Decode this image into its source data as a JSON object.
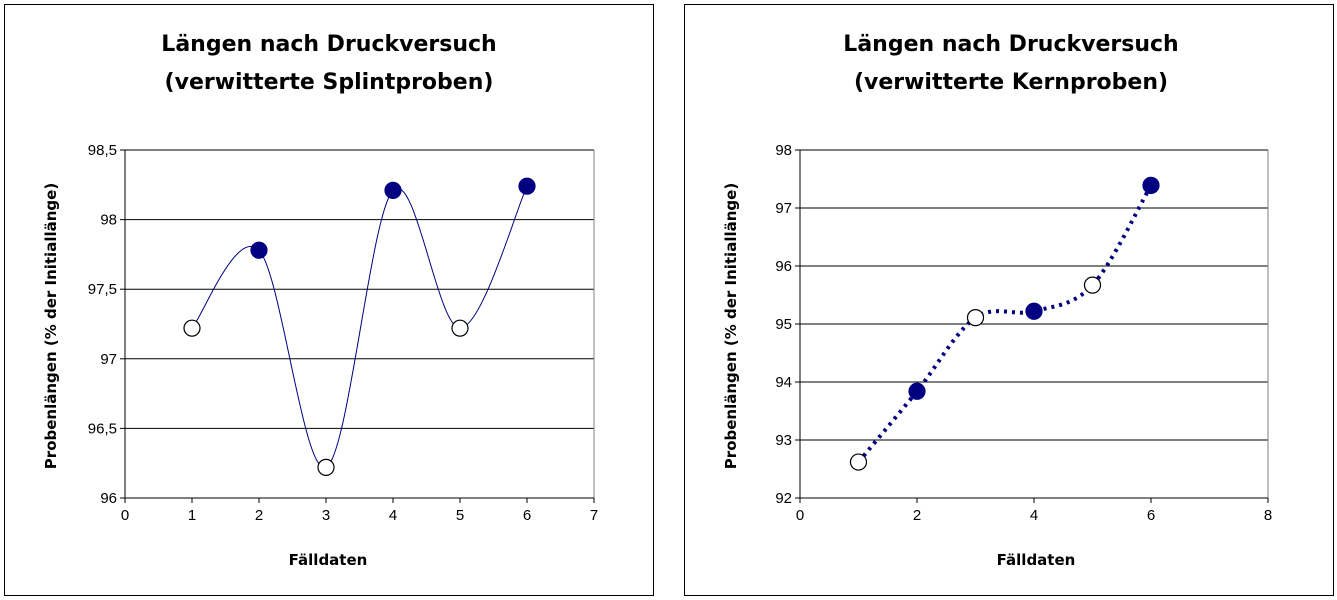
{
  "chart_data": [
    {
      "type": "scatter",
      "title": [
        "Längen nach Druckversuch",
        "(verwitterte Splintproben)"
      ],
      "xlabel": "Fälldaten",
      "ylabel": "Probenlängen (% der Initiallänge)",
      "xlim": [
        0,
        7
      ],
      "ylim": [
        96,
        98.5
      ],
      "x_ticks": [
        "0",
        "1",
        "2",
        "3",
        "4",
        "5",
        "6",
        "7"
      ],
      "y_ticks": [
        "96",
        "96,5",
        "97",
        "97,5",
        "98",
        "98,5"
      ],
      "grid": true,
      "line_style": "smooth-solid",
      "line_color": "#000080",
      "points": [
        {
          "x": 1,
          "y": 97.22,
          "filled": false
        },
        {
          "x": 2,
          "y": 97.78,
          "filled": true
        },
        {
          "x": 3,
          "y": 96.22,
          "filled": false
        },
        {
          "x": 4,
          "y": 98.21,
          "filled": true
        },
        {
          "x": 5,
          "y": 97.22,
          "filled": false
        },
        {
          "x": 6,
          "y": 98.24,
          "filled": true
        }
      ]
    },
    {
      "type": "scatter",
      "title": [
        "Längen nach Druckversuch",
        "(verwitterte Kernproben)"
      ],
      "xlabel": "Fälldaten",
      "ylabel": "Probenlängen (% der Initiallänge)",
      "xlim": [
        0,
        8
      ],
      "ylim": [
        92,
        98
      ],
      "x_ticks": [
        "0",
        "2",
        "4",
        "6",
        "8"
      ],
      "y_ticks": [
        "92",
        "93",
        "94",
        "95",
        "96",
        "97",
        "98"
      ],
      "grid": true,
      "line_style": "smooth-dotted",
      "line_color": "#000080",
      "points": [
        {
          "x": 1,
          "y": 92.62,
          "filled": false
        },
        {
          "x": 2,
          "y": 93.84,
          "filled": true
        },
        {
          "x": 3,
          "y": 95.11,
          "filled": false
        },
        {
          "x": 4,
          "y": 95.22,
          "filled": true
        },
        {
          "x": 5,
          "y": 95.67,
          "filled": false
        },
        {
          "x": 6,
          "y": 97.39,
          "filled": true
        }
      ]
    }
  ]
}
